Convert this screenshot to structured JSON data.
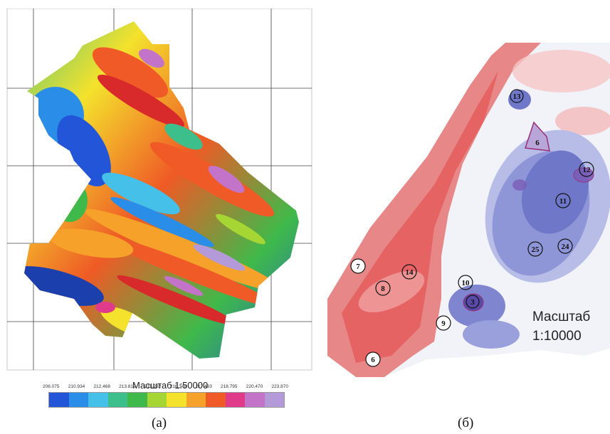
{
  "panel_a": {
    "scale_label": "Масштаб 1:50000",
    "colorbar_ticks": [
      "206.075",
      "210.934",
      "212.468",
      "213.819",
      "215.232",
      "216.348",
      "217.493",
      "218.795",
      "220.470",
      "223.870"
    ],
    "colorbar_colors": [
      "#2255d8",
      "#2a8ee8",
      "#45c0e8",
      "#3cbf8a",
      "#3fb94a",
      "#a6d633",
      "#f4e22c",
      "#f6a12a",
      "#ef5a26",
      "#e03a8a",
      "#c474c8",
      "#b49ad9"
    ],
    "caption": "(а)"
  },
  "panel_b": {
    "scale_label_line1": "Масштаб",
    "scale_label_line2": "1:10000",
    "caption": "(б)",
    "markers": [
      "13",
      "6",
      "12",
      "11",
      "25",
      "24",
      "7",
      "14",
      "8",
      "10",
      "3",
      "9",
      "6"
    ]
  }
}
